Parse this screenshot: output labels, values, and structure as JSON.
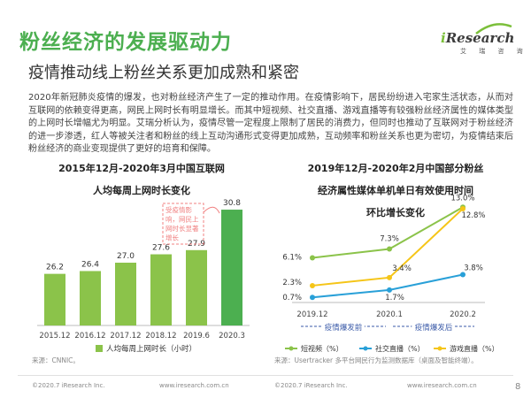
{
  "page": {
    "title": "粉丝经济的发展驱动力",
    "subtitle": "疫情推动线上粉丝关系更加成熟和紧密",
    "intro": "2020年新冠肺炎疫情的爆发，也对粉丝经济产生了一定的推动作用。在疫情影响下，居民纷纷进入宅家生活状态，从而对互联网的依赖变得更高，网民上网时长有明显增长。而其中短视频、社交直播、游戏直播等有较强粉丝经济属性的媒体类型的上网时长增幅尤为明显。艾瑞分析认为，疫情尽管一定程度上限制了居民的消费力，但同时也推动了互联网对于粉丝经济的进一步渗透，红人等被关注者和粉丝的线上互动沟通形式变得更加成熟，互动频率和粉丝关系也更为密切，为疫情结束后粉丝经济的商业变现提供了更好的培育和保障。",
    "page_number": "8"
  },
  "logo": {
    "name_i": "i",
    "name_rest": "Research",
    "cn": "艾 瑞 咨 询"
  },
  "colors": {
    "accent_green": "#4caf50",
    "bar_green": "#8bc34a",
    "bar_highlight": "#4caf50",
    "annotation_pink": "#f08080",
    "line_short_video": "#8bc34a",
    "line_social_live": "#29a0d8",
    "line_game_live": "#f5c518"
  },
  "footer": {
    "left_copyright": "©2020.7 iResearch Inc.",
    "left_url": "www.iresearch.com.cn",
    "right_copyright": "©2020.7 iResearch Inc.",
    "right_url": "www.iresearch.com.cn"
  },
  "chart_data": [
    {
      "type": "bar",
      "title": "2015年12月-2020年3月中国互联网人均每周上网时长变化",
      "title_line1": "2015年12月-2020年3月中国互联网",
      "title_line2": "人均每周上网时长变化",
      "categories": [
        "2015.12",
        "2016.12",
        "2017.12",
        "2018.12",
        "2019.6",
        "2020.3"
      ],
      "series": [
        {
          "name": "人均每周上网时长（小时）",
          "values": [
            26.2,
            26.4,
            27.0,
            27.6,
            27.9,
            30.8
          ]
        }
      ],
      "value_labels": [
        "26.2",
        "26.4",
        "27.0",
        "27.6",
        "27.9",
        "30.8"
      ],
      "ylim": [
        22.5,
        31.5
      ],
      "grid": false,
      "legend": "bottom",
      "annotation": "受疫情影响，网民上网时长显著增长",
      "annotation_lines": [
        "受疫情影",
        "响，网民上",
        "网时长显著",
        "增长"
      ],
      "source": "来源：CNNIC。"
    },
    {
      "type": "line",
      "title": "2019年12月-2020年2月中国部分粉丝经济属性媒体单机单日有效使用时间环比增长变化",
      "title_line1": "2019年12月-2020年2月中国部分粉丝",
      "title_line2": "经济属性媒体单机单日有效使用时间",
      "title_line3": "环比增长变化",
      "x": [
        "2019.12",
        "2020.1",
        "2020.2"
      ],
      "series": [
        {
          "name": "短视频（%）",
          "values": [
            6.1,
            7.3,
            13.0
          ],
          "labels": [
            "6.1%",
            "7.3%",
            "13.0%"
          ]
        },
        {
          "name": "社交直播（%）",
          "values": [
            0.7,
            1.7,
            3.8
          ],
          "labels": [
            "0.7%",
            "1.7%",
            "3.8%"
          ]
        },
        {
          "name": "游戏直播（%）",
          "values": [
            2.3,
            3.4,
            12.8
          ],
          "labels": [
            "2.3%",
            "3.4%",
            "12.8%"
          ]
        }
      ],
      "ylim": [
        0,
        14
      ],
      "grid": false,
      "legend": "bottom",
      "period_labels": [
        "疫情爆发前",
        "疫情爆发后"
      ],
      "source": "来源：Usertracker 多平台网民行为监测数据库（桌面及智能终端）。"
    }
  ]
}
